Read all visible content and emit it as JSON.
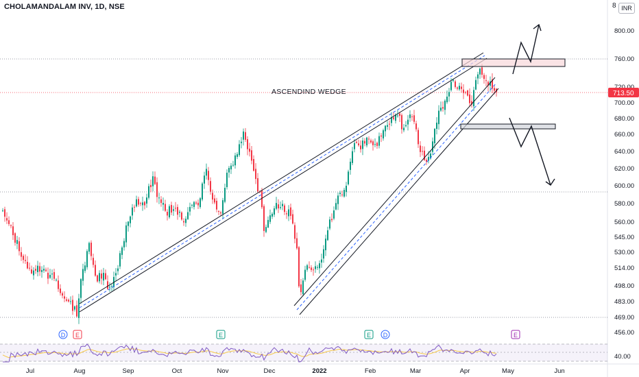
{
  "header": {
    "symbol_title": "CHOLAMANDALAM INV, 1D, NSE",
    "currency_prefix": "8",
    "currency": "INR"
  },
  "price_axis": {
    "labels": [
      "800.00",
      "760.00",
      "720.00",
      "700.00",
      "680.00",
      "660.00",
      "640.00",
      "620.00",
      "600.00",
      "580.00",
      "560.00",
      "545.00",
      "530.00",
      "514.00",
      "498.00",
      "483.00",
      "469.00",
      "456.00"
    ],
    "current_price": "713.50",
    "rsi_label": "40.00"
  },
  "time_axis": {
    "labels": [
      "Jul",
      "Aug",
      "Sep",
      "Oct",
      "Nov",
      "Dec",
      "2022",
      "Feb",
      "Mar",
      "Apr",
      "May",
      "Jun"
    ]
  },
  "annotation": {
    "pattern_label": "ASCENDIND WEDGE"
  },
  "events": [
    {
      "letter": "D",
      "color": "#2962ff"
    },
    {
      "letter": "E",
      "color": "#f23645"
    },
    {
      "letter": "E",
      "color": "#089981"
    },
    {
      "letter": "E",
      "color": "#089981"
    },
    {
      "letter": "D",
      "color": "#2962ff"
    },
    {
      "letter": "E",
      "color": "#9c27b0"
    }
  ],
  "colors": {
    "up": "#089981",
    "down": "#f23645",
    "line": "#131722",
    "rsi": "#7e57c2",
    "rsi_ma": "#f7c948",
    "current_price_bg": "#f23645"
  }
}
